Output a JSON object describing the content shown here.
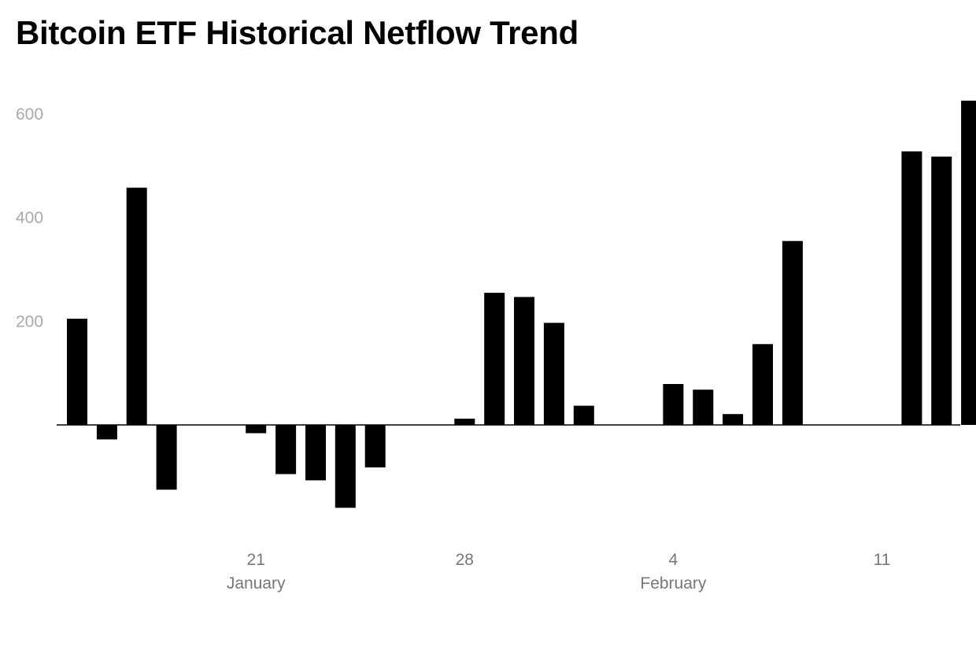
{
  "title": "Bitcoin ETF Historical Netflow Trend",
  "chart_data": {
    "type": "bar",
    "title": "Bitcoin ETF Historical Netflow Trend",
    "xlabel": "",
    "ylabel": "",
    "ylim": [
      -300,
      650
    ],
    "y_ticks": [
      200,
      400,
      600
    ],
    "grid": false,
    "legend": "none",
    "bar_color": "#000000",
    "x_tick_labels": [
      {
        "date": "2024-01-21",
        "day": "21",
        "month": "January"
      },
      {
        "date": "2024-01-28",
        "day": "28",
        "month": ""
      },
      {
        "date": "2024-02-04",
        "day": "4",
        "month": "February"
      },
      {
        "date": "2024-02-11",
        "day": "11",
        "month": ""
      }
    ],
    "x": [
      "2024-01-15",
      "2024-01-16",
      "2024-01-17",
      "2024-01-18",
      "2024-01-19",
      "2024-01-20",
      "2024-01-21",
      "2024-01-22",
      "2024-01-23",
      "2024-01-24",
      "2024-01-25",
      "2024-01-26",
      "2024-01-27",
      "2024-01-28",
      "2024-01-29",
      "2024-01-30",
      "2024-01-31",
      "2024-02-01",
      "2024-02-02",
      "2024-02-03",
      "2024-02-04",
      "2024-02-05",
      "2024-02-06",
      "2024-02-07",
      "2024-02-08",
      "2024-02-09",
      "2024-02-10",
      "2024-02-11",
      "2024-02-12",
      "2024-02-13",
      "2024-02-14"
    ],
    "values": [
      205,
      -28,
      458,
      -125,
      0,
      0,
      -16,
      -95,
      -107,
      -160,
      -82,
      0,
      0,
      12,
      255,
      247,
      197,
      37,
      0,
      0,
      79,
      68,
      21,
      156,
      355,
      0,
      0,
      0,
      528,
      518,
      626
    ]
  }
}
